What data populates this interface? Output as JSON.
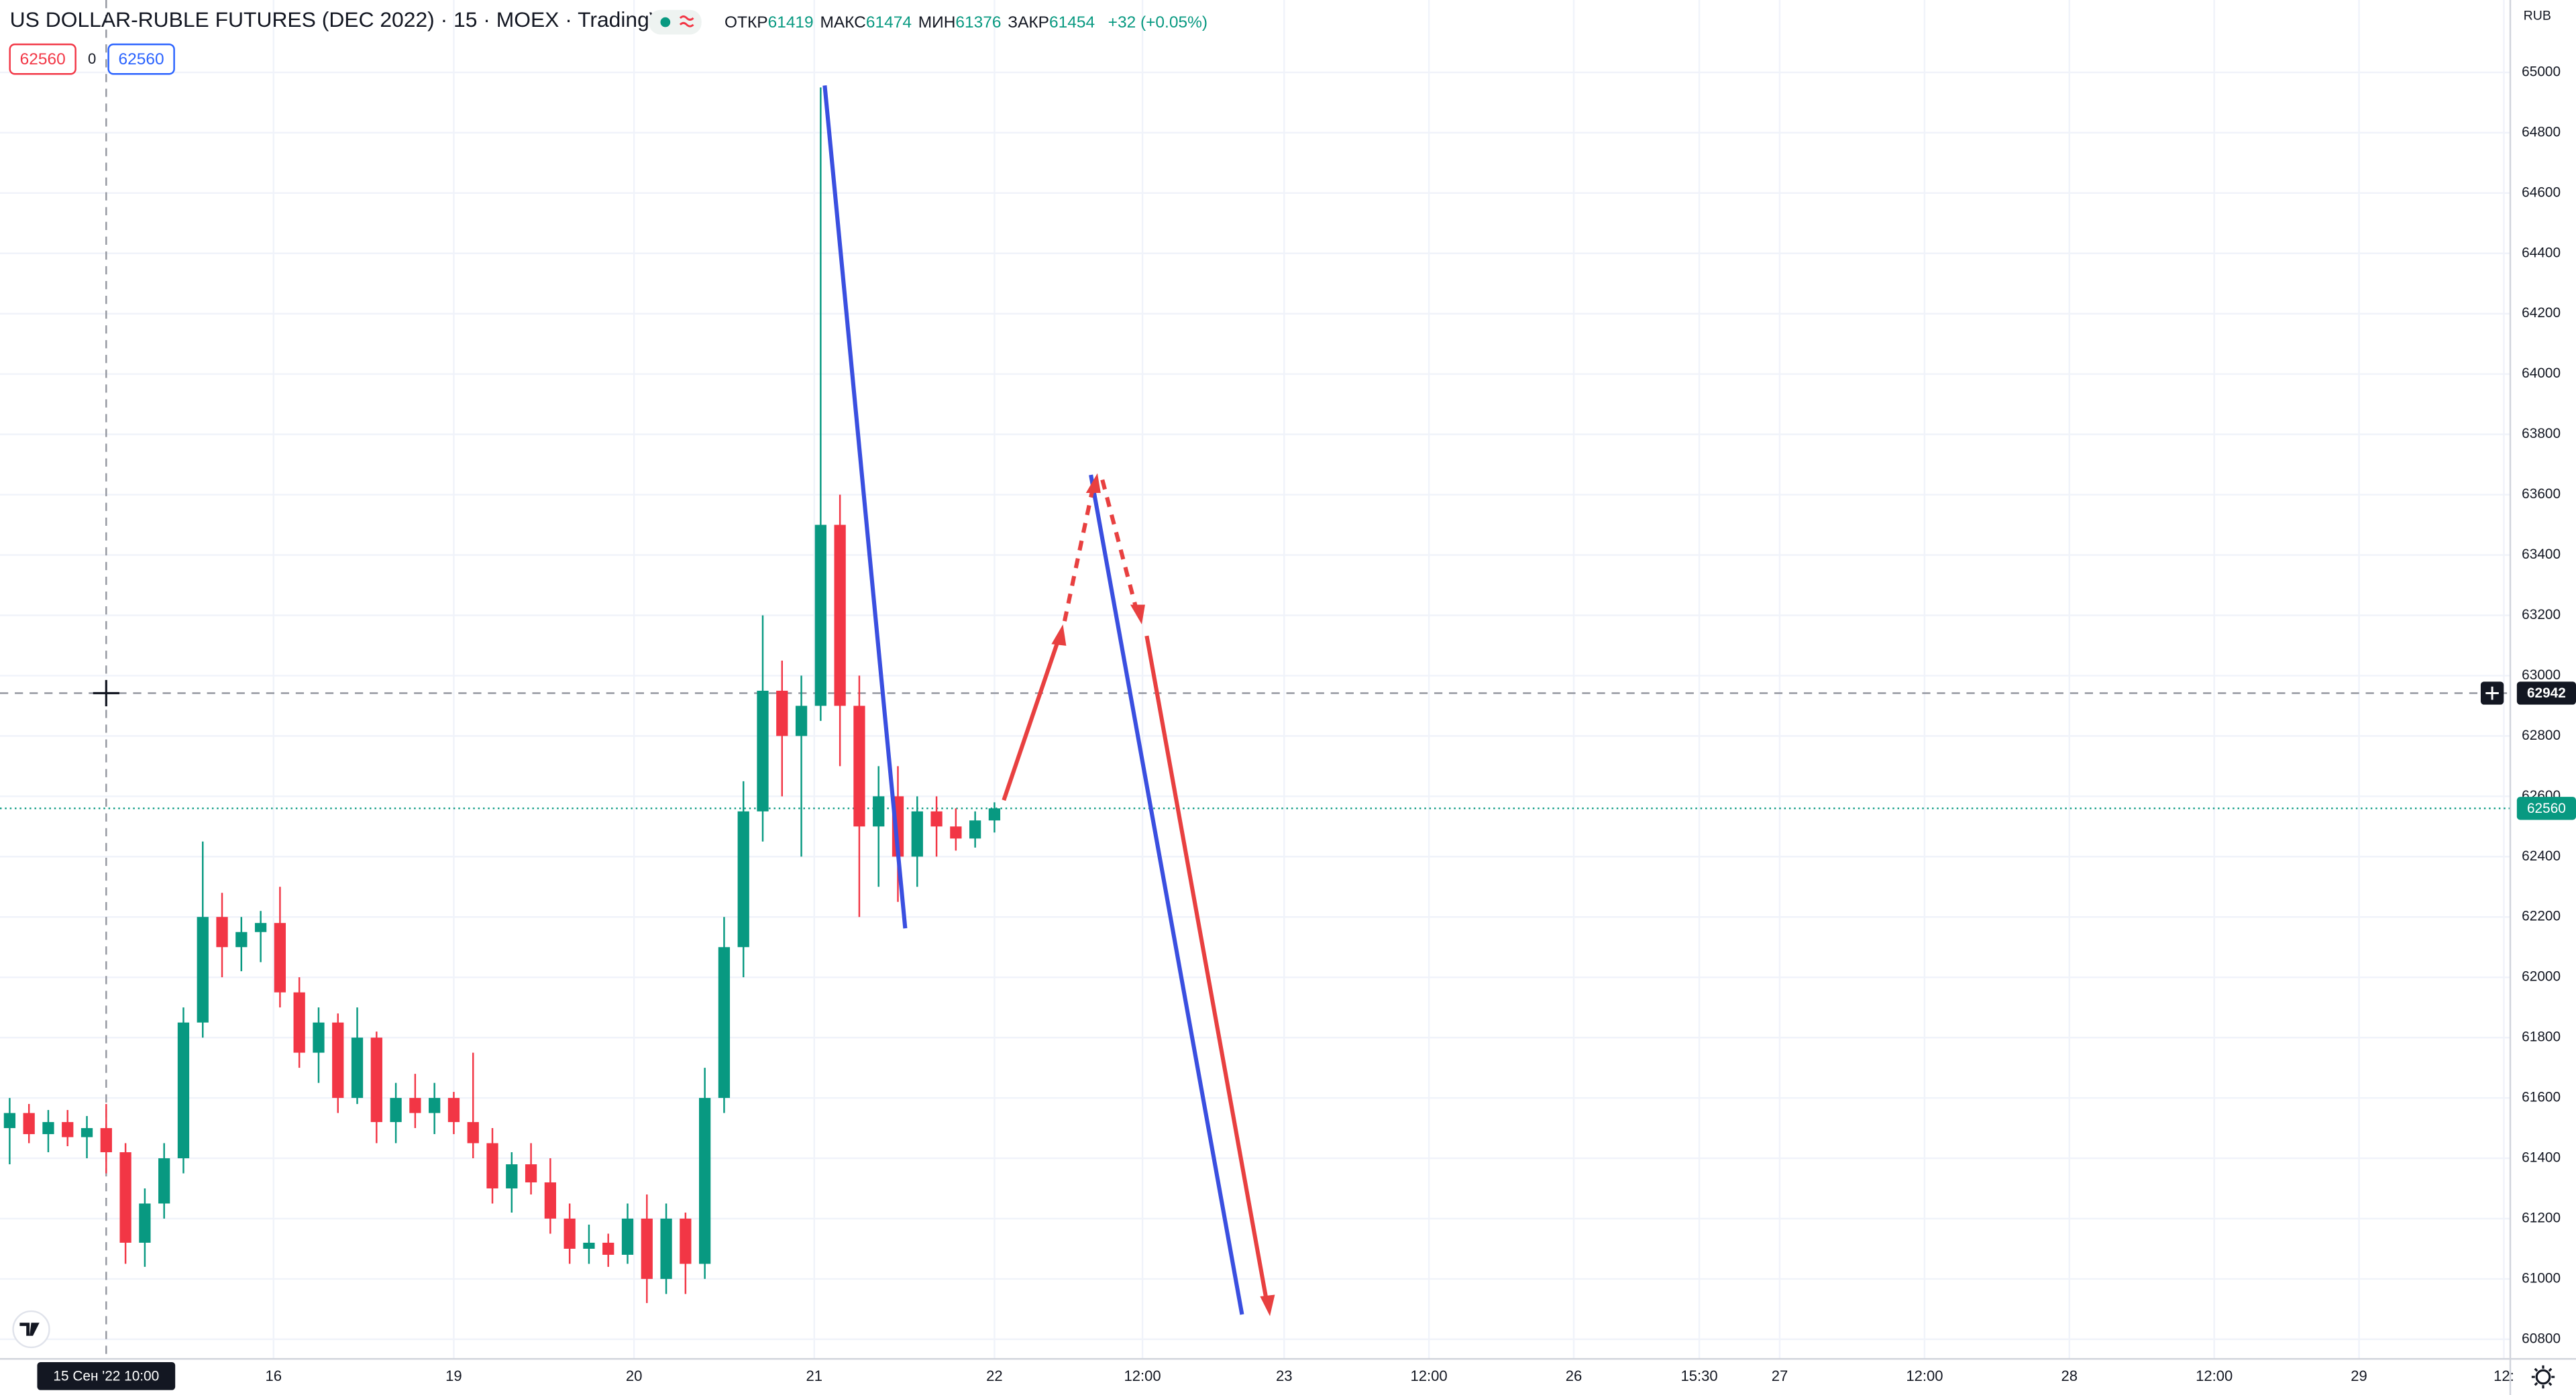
{
  "chart_data": {
    "type": "candlestick",
    "title": "US DOLLAR-RUBLE FUTURES (DEC 2022) · 15 · MOEX · TradingView",
    "legend": {
      "open_label": "ОТКР",
      "open": 61419,
      "high_label": "МАКС",
      "high": 61474,
      "low_label": "МИН",
      "low": 61376,
      "close_label": "ЗАКР",
      "close": 61454,
      "change": "+32 (+0.05%)"
    },
    "order_panel": {
      "sell": 62560,
      "spread": 0,
      "buy": 62560
    },
    "currency": "RUB",
    "last_price": 62560,
    "crosshair_price": 62942,
    "crosshair_time": {
      "value": 33,
      "label": "15 Сен '22 10:00"
    },
    "up_color": "#089981",
    "down_color": "#f23645",
    "grid": true,
    "xlim": [
      0,
      780
    ],
    "xticks": [
      {
        "value": 85,
        "label": "16"
      },
      {
        "value": 141,
        "label": "19"
      },
      {
        "value": 197,
        "label": "20"
      },
      {
        "value": 253,
        "label": "21"
      },
      {
        "value": 309,
        "label": "22"
      },
      {
        "value": 355,
        "label": "12:00"
      },
      {
        "value": 399,
        "label": "23"
      },
      {
        "value": 444,
        "label": "12:00"
      },
      {
        "value": 489,
        "label": "26"
      },
      {
        "value": 528,
        "label": "15:30"
      },
      {
        "value": 553,
        "label": "27"
      },
      {
        "value": 598,
        "label": "12:00"
      },
      {
        "value": 643,
        "label": "28"
      },
      {
        "value": 688,
        "label": "12:00"
      },
      {
        "value": 733,
        "label": "29"
      },
      {
        "value": 778,
        "label": "12:"
      }
    ],
    "ylim": [
      60735,
      65240
    ],
    "yticks": [
      60800,
      61000,
      61200,
      61400,
      61600,
      61800,
      62000,
      62200,
      62400,
      62600,
      62800,
      63000,
      63200,
      63400,
      63600,
      63800,
      64000,
      64200,
      64400,
      64600,
      64800,
      65000
    ],
    "x": [
      3,
      9,
      15,
      21,
      27,
      33,
      39,
      45,
      51,
      57,
      63,
      69,
      75,
      81,
      87,
      93,
      99,
      105,
      111,
      117,
      123,
      129,
      135,
      141,
      147,
      153,
      159,
      165,
      171,
      177,
      183,
      189,
      195,
      201,
      207,
      213,
      219,
      225,
      231,
      237,
      243,
      249,
      255,
      261,
      267,
      273,
      279,
      285,
      291,
      297,
      303,
      309
    ],
    "open": [
      61500,
      61550,
      61480,
      61520,
      61470,
      61500,
      61420,
      61120,
      61250,
      61400,
      61850,
      62200,
      62100,
      62150,
      62180,
      61950,
      61750,
      61850,
      61600,
      61800,
      61520,
      61600,
      61550,
      61600,
      61520,
      61450,
      61300,
      61380,
      61320,
      61200,
      61100,
      61120,
      61080,
      61200,
      61000,
      61200,
      61050,
      61600,
      62100,
      62550,
      62950,
      62800,
      62900,
      63500,
      62900,
      62500,
      62600,
      62400,
      62550,
      62500,
      62460,
      62520
    ],
    "high": [
      61600,
      61580,
      61560,
      61560,
      61540,
      61580,
      61450,
      61300,
      61450,
      61900,
      62450,
      62280,
      62200,
      62220,
      62300,
      62000,
      61900,
      61880,
      61900,
      61820,
      61650,
      61680,
      61650,
      61620,
      61750,
      61500,
      61420,
      61450,
      61400,
      61250,
      61180,
      61150,
      61250,
      61280,
      61250,
      61220,
      61700,
      62200,
      62650,
      63200,
      63050,
      63000,
      64950,
      63600,
      63000,
      62700,
      62700,
      62600,
      62600,
      62560,
      62550,
      62580
    ],
    "low": [
      61380,
      61450,
      61420,
      61440,
      61400,
      61350,
      61050,
      61040,
      61200,
      61350,
      61800,
      62000,
      62020,
      62050,
      61900,
      61700,
      61650,
      61550,
      61580,
      61450,
      61450,
      61500,
      61480,
      61480,
      61400,
      61250,
      61220,
      61280,
      61150,
      61050,
      61050,
      61040,
      61050,
      60920,
      60950,
      60950,
      61000,
      61550,
      62000,
      62450,
      62600,
      62400,
      62850,
      62700,
      62200,
      62300,
      62250,
      62300,
      62400,
      62420,
      62430,
      62480
    ],
    "close": [
      61550,
      61480,
      61520,
      61470,
      61500,
      61420,
      61120,
      61250,
      61400,
      61850,
      62200,
      62100,
      62150,
      62180,
      61950,
      61750,
      61850,
      61600,
      61800,
      61520,
      61600,
      61550,
      61600,
      61520,
      61450,
      61300,
      61380,
      61320,
      61200,
      61100,
      61120,
      61080,
      61200,
      61000,
      61200,
      61050,
      61600,
      62100,
      62550,
      62950,
      62800,
      62900,
      63500,
      62900,
      62500,
      62600,
      62400,
      62550,
      62500,
      62460,
      62520,
      62560
    ]
  }
}
